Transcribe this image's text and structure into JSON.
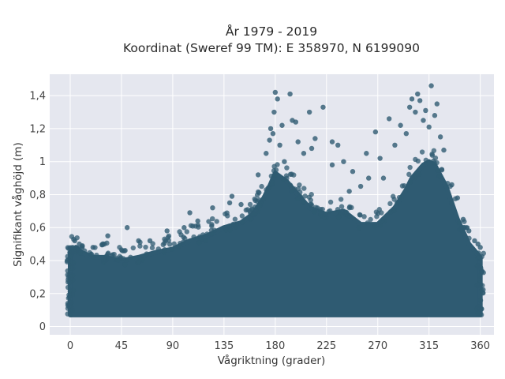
{
  "chart_data": {
    "type": "scatter",
    "title_line1": "År 1979 - 2019",
    "title_line2": "Koordinat (Sweref 99 TM): E 358970, N 6199090",
    "xlabel": "Vågriktning (grader)",
    "ylabel": "Signifikant våghöjd (m)",
    "xlim": [
      -18,
      372
    ],
    "ylim": [
      -0.05,
      1.53
    ],
    "grid": true,
    "x_ticks": [
      0,
      45,
      90,
      135,
      180,
      225,
      270,
      315,
      360
    ],
    "x_tick_labels": [
      "0",
      "45",
      "90",
      "135",
      "180",
      "225",
      "270",
      "315",
      "360"
    ],
    "y_ticks": [
      0,
      0.2,
      0.4,
      0.6,
      0.8,
      1.0,
      1.2,
      1.4
    ],
    "y_tick_labels": [
      "0",
      "0,2",
      "0,4",
      "0,6",
      "0,8",
      "1",
      "1,2",
      "1,4"
    ],
    "marker_color": "#2f5b72",
    "plot_bg": "#e5e7ef",
    "envelope": {
      "x": [
        0,
        5,
        10,
        20,
        30,
        45,
        60,
        75,
        90,
        105,
        120,
        135,
        150,
        160,
        170,
        175,
        180,
        190,
        200,
        210,
        225,
        240,
        255,
        270,
        285,
        295,
        300,
        310,
        315,
        320,
        330,
        340,
        350,
        360
      ],
      "upper_y": [
        0.45,
        0.48,
        0.45,
        0.42,
        0.42,
        0.4,
        0.42,
        0.45,
        0.47,
        0.52,
        0.55,
        0.6,
        0.63,
        0.68,
        0.78,
        0.85,
        0.93,
        0.88,
        0.8,
        0.72,
        0.68,
        0.7,
        0.62,
        0.62,
        0.72,
        0.83,
        0.9,
        0.98,
        1.0,
        0.98,
        0.85,
        0.65,
        0.5,
        0.42
      ],
      "lower_y": 0.07
    },
    "outliers": [
      {
        "x": 4,
        "y": 0.52
      },
      {
        "x": 8,
        "y": 0.5
      },
      {
        "x": 30,
        "y": 0.5
      },
      {
        "x": 33,
        "y": 0.55
      },
      {
        "x": 50,
        "y": 0.6
      },
      {
        "x": 60,
        "y": 0.52
      },
      {
        "x": 85,
        "y": 0.58
      },
      {
        "x": 105,
        "y": 0.69
      },
      {
        "x": 112,
        "y": 0.64
      },
      {
        "x": 125,
        "y": 0.72
      },
      {
        "x": 140,
        "y": 0.75
      },
      {
        "x": 142,
        "y": 0.79
      },
      {
        "x": 150,
        "y": 0.74
      },
      {
        "x": 165,
        "y": 0.92
      },
      {
        "x": 172,
        "y": 1.05
      },
      {
        "x": 175,
        "y": 1.13
      },
      {
        "x": 176,
        "y": 1.2
      },
      {
        "x": 178,
        "y": 1.17
      },
      {
        "x": 179,
        "y": 1.3
      },
      {
        "x": 180,
        "y": 1.42
      },
      {
        "x": 182,
        "y": 1.38
      },
      {
        "x": 184,
        "y": 1.1
      },
      {
        "x": 186,
        "y": 1.22
      },
      {
        "x": 188,
        "y": 1.0
      },
      {
        "x": 193,
        "y": 1.41
      },
      {
        "x": 195,
        "y": 1.25
      },
      {
        "x": 198,
        "y": 1.24
      },
      {
        "x": 200,
        "y": 1.12
      },
      {
        "x": 205,
        "y": 1.05
      },
      {
        "x": 210,
        "y": 1.3
      },
      {
        "x": 212,
        "y": 1.08
      },
      {
        "x": 215,
        "y": 1.14
      },
      {
        "x": 222,
        "y": 1.33
      },
      {
        "x": 230,
        "y": 1.12
      },
      {
        "x": 235,
        "y": 1.1
      },
      {
        "x": 240,
        "y": 1.0
      },
      {
        "x": 248,
        "y": 0.94
      },
      {
        "x": 260,
        "y": 1.05
      },
      {
        "x": 268,
        "y": 1.18
      },
      {
        "x": 272,
        "y": 1.02
      },
      {
        "x": 280,
        "y": 1.26
      },
      {
        "x": 285,
        "y": 1.1
      },
      {
        "x": 290,
        "y": 1.22
      },
      {
        "x": 295,
        "y": 1.17
      },
      {
        "x": 298,
        "y": 1.33
      },
      {
        "x": 300,
        "y": 1.38
      },
      {
        "x": 303,
        "y": 1.3
      },
      {
        "x": 305,
        "y": 1.41
      },
      {
        "x": 307,
        "y": 1.37
      },
      {
        "x": 310,
        "y": 1.25
      },
      {
        "x": 312,
        "y": 1.31
      },
      {
        "x": 315,
        "y": 1.21
      },
      {
        "x": 317,
        "y": 1.46
      },
      {
        "x": 320,
        "y": 1.28
      },
      {
        "x": 322,
        "y": 1.35
      },
      {
        "x": 325,
        "y": 1.15
      },
      {
        "x": 328,
        "y": 1.07
      },
      {
        "x": 335,
        "y": 0.86
      },
      {
        "x": 340,
        "y": 0.78
      },
      {
        "x": 345,
        "y": 0.65
      },
      {
        "x": 350,
        "y": 0.58
      },
      {
        "x": 355,
        "y": 0.52
      },
      {
        "x": 358,
        "y": 0.5
      },
      {
        "x": 360,
        "y": 0.48
      },
      {
        "x": 100,
        "y": 0.6
      },
      {
        "x": 70,
        "y": 0.52
      },
      {
        "x": 20,
        "y": 0.48
      },
      {
        "x": 230,
        "y": 0.98
      },
      {
        "x": 255,
        "y": 0.85
      },
      {
        "x": 262,
        "y": 0.9
      },
      {
        "x": 275,
        "y": 0.9
      },
      {
        "x": 245,
        "y": 0.82
      }
    ]
  }
}
